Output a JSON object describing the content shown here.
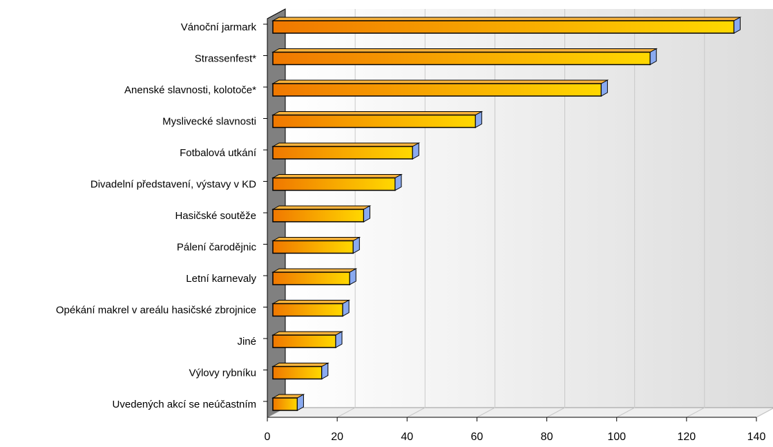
{
  "chart_data": {
    "type": "bar",
    "orientation": "horizontal",
    "categories": [
      "Vánoční jarmark",
      "Strassenfest*",
      "Anenské slavnosti, kolotoče*",
      "Myslivecké slavnosti",
      "Fotbalová utkání",
      "Divadelní představení, výstavy v KD",
      "Hasičské soutěže",
      "Pálení čarodějnic",
      "Letní karnevaly",
      "Opékání makrel v areálu hasičské zbrojnice",
      "Jiné",
      "Výlovy rybníku",
      "Uvedených akcí se neúčastním"
    ],
    "values": [
      132,
      108,
      94,
      58,
      40,
      35,
      26,
      23,
      22,
      20,
      18,
      14,
      7
    ],
    "xlim": [
      0,
      140
    ],
    "xticks": [
      "0",
      "20",
      "40",
      "60",
      "80",
      "100",
      "120",
      "140"
    ],
    "grid": true,
    "colors": {
      "bar_start": "#f07800",
      "bar_end": "#ffd800",
      "bar_cap": "#8aaaf0",
      "bar_outline": "#000000",
      "wall": "#808080",
      "grid": "#c8c8c8"
    }
  }
}
